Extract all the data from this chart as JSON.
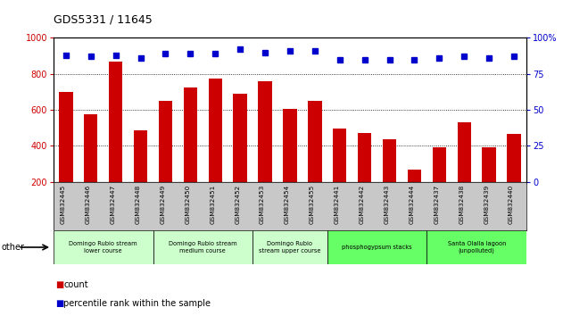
{
  "title": "GDS5331 / 11645",
  "samples": [
    "GSM832445",
    "GSM832446",
    "GSM832447",
    "GSM832448",
    "GSM832449",
    "GSM832450",
    "GSM832451",
    "GSM832452",
    "GSM832453",
    "GSM832454",
    "GSM832455",
    "GSM832441",
    "GSM832442",
    "GSM832443",
    "GSM832444",
    "GSM832437",
    "GSM832438",
    "GSM832439",
    "GSM832440"
  ],
  "counts": [
    700,
    575,
    870,
    485,
    650,
    725,
    775,
    690,
    760,
    605,
    650,
    495,
    470,
    435,
    265,
    390,
    530,
    390,
    465
  ],
  "percentiles": [
    88,
    87,
    88,
    86,
    89,
    89,
    89,
    92,
    90,
    91,
    91,
    85,
    85,
    85,
    85,
    86,
    87,
    86,
    87
  ],
  "bar_color": "#cc0000",
  "dot_color": "#0000cc",
  "ylim_left": [
    200,
    1000
  ],
  "ylim_right": [
    0,
    100
  ],
  "yticks_left": [
    200,
    400,
    600,
    800,
    1000
  ],
  "yticks_right": [
    0,
    25,
    50,
    75,
    100
  ],
  "groups": [
    {
      "label": "Domingo Rubio stream\nlower course",
      "start": 0,
      "end": 4,
      "color": "#ccffcc"
    },
    {
      "label": "Domingo Rubio stream\nmedium course",
      "start": 4,
      "end": 8,
      "color": "#ccffcc"
    },
    {
      "label": "Domingo Rubio\nstream upper course",
      "start": 8,
      "end": 11,
      "color": "#ccffcc"
    },
    {
      "label": "phosphogypsum stacks",
      "start": 11,
      "end": 15,
      "color": "#66ff66"
    },
    {
      "label": "Santa Olalla lagoon\n(unpolluted)",
      "start": 15,
      "end": 19,
      "color": "#66ff66"
    }
  ],
  "other_label": "other",
  "legend_count_label": "count",
  "legend_pct_label": "percentile rank within the sample",
  "bg_gray": "#c8c8c8",
  "bar_width": 0.55
}
